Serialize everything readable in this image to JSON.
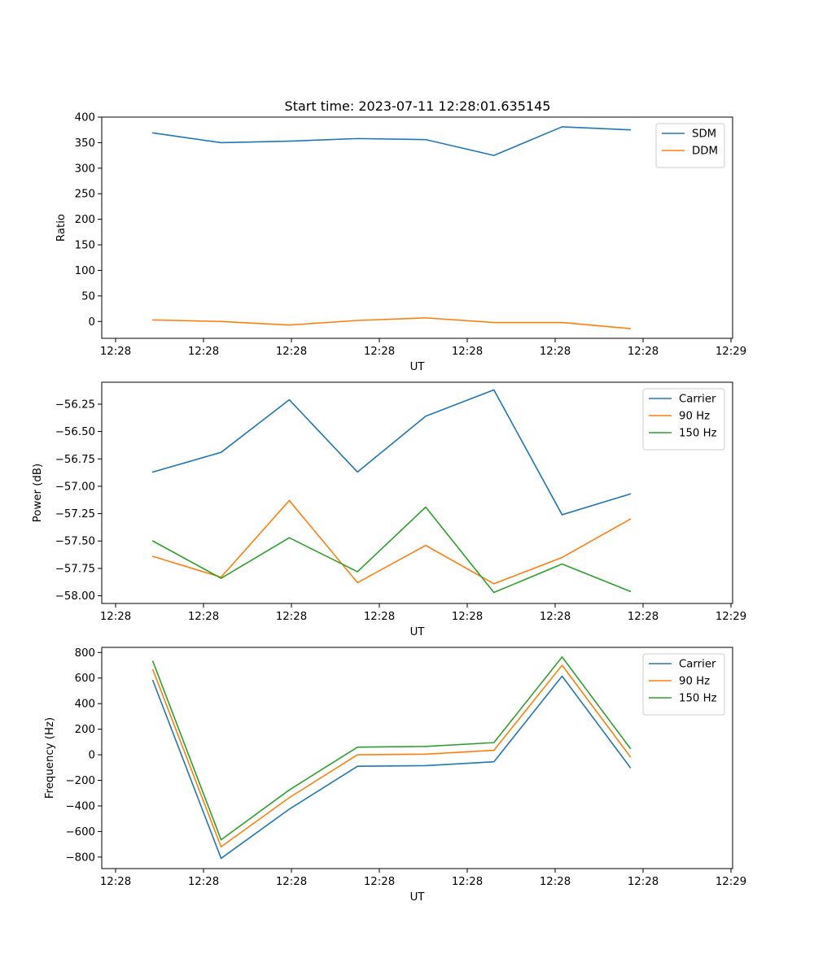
{
  "figure": {
    "title": "Start time: 2023-07-11 12:28:01.635145"
  },
  "chart_data": [
    {
      "type": "line",
      "title": "Start time: 2023-07-11 12:28:01.635145",
      "xlabel": "UT",
      "ylabel": "Ratio",
      "xticklabels": [
        "12:28",
        "12:28",
        "12:28",
        "12:28",
        "12:28",
        "12:28",
        "12:28",
        "12:29"
      ],
      "xlim": [
        -0.75,
        8.5
      ],
      "x": [
        0,
        1,
        2,
        3,
        4,
        5,
        6,
        7
      ],
      "ylim": [
        -33,
        400
      ],
      "yticks": [
        0,
        50,
        100,
        150,
        200,
        250,
        300,
        350,
        400
      ],
      "yticklabels": [
        "0",
        "50",
        "100",
        "150",
        "200",
        "250",
        "300",
        "350",
        "400"
      ],
      "legend_position": "upper right",
      "series": [
        {
          "name": "SDM",
          "color": "#1f77b4",
          "values": [
            369,
            350,
            353,
            358,
            356,
            325,
            381,
            375
          ]
        },
        {
          "name": "DDM",
          "color": "#ff7f0e",
          "values": [
            3,
            0,
            -7,
            2,
            7,
            -2,
            -2,
            -14
          ]
        }
      ]
    },
    {
      "type": "line",
      "xlabel": "UT",
      "ylabel": "Power (dB)",
      "xticklabels": [
        "12:28",
        "12:28",
        "12:28",
        "12:28",
        "12:28",
        "12:28",
        "12:28",
        "12:29"
      ],
      "xlim": [
        -0.75,
        8.5
      ],
      "x": [
        0,
        1,
        2,
        3,
        4,
        5,
        6,
        7
      ],
      "ylim": [
        -58.07,
        -56.05
      ],
      "yticks": [
        -58.0,
        -57.75,
        -57.5,
        -57.25,
        -57.0,
        -56.75,
        -56.5,
        -56.25
      ],
      "yticklabels": [
        "−58.00",
        "−57.75",
        "−57.50",
        "−57.25",
        "−57.00",
        "−56.75",
        "−56.50",
        "−56.25"
      ],
      "legend_position": "upper right",
      "series": [
        {
          "name": "Carrier",
          "color": "#1f77b4",
          "values": [
            -56.87,
            -56.69,
            -56.21,
            -56.87,
            -56.36,
            -56.12,
            -57.26,
            -57.07
          ]
        },
        {
          "name": "90 Hz",
          "color": "#ff7f0e",
          "values": [
            -57.64,
            -57.83,
            -57.13,
            -57.88,
            -57.54,
            -57.89,
            -57.65,
            -57.3
          ]
        },
        {
          "name": "150 Hz",
          "color": "#2ca02c",
          "values": [
            -57.5,
            -57.84,
            -57.47,
            -57.78,
            -57.19,
            -57.97,
            -57.71,
            -57.96
          ]
        }
      ]
    },
    {
      "type": "line",
      "xlabel": "UT",
      "ylabel": "Frequency (Hz)",
      "xticklabels": [
        "12:28",
        "12:28",
        "12:28",
        "12:28",
        "12:28",
        "12:28",
        "12:28",
        "12:29"
      ],
      "xlim": [
        -0.75,
        8.5
      ],
      "x": [
        0,
        1,
        2,
        3,
        4,
        5,
        6,
        7
      ],
      "ylim": [
        -890,
        840
      ],
      "yticks": [
        -800,
        -600,
        -400,
        -200,
        0,
        200,
        400,
        600,
        800
      ],
      "yticklabels": [
        "−800",
        "−600",
        "−400",
        "−200",
        "0",
        "200",
        "400",
        "600",
        "800"
      ],
      "legend_position": "upper right",
      "series": [
        {
          "name": "Carrier",
          "color": "#1f77b4",
          "values": [
            580,
            -810,
            -425,
            -90,
            -85,
            -55,
            615,
            -100
          ]
        },
        {
          "name": "90 Hz",
          "color": "#ff7f0e",
          "values": [
            665,
            -720,
            -335,
            0,
            5,
            35,
            700,
            -15
          ]
        },
        {
          "name": "150 Hz",
          "color": "#2ca02c",
          "values": [
            730,
            -665,
            -275,
            60,
            65,
            95,
            765,
            50
          ]
        }
      ]
    }
  ]
}
